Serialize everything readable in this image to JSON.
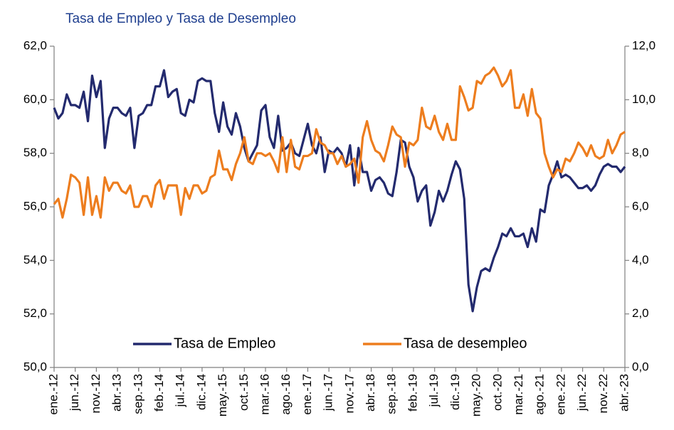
{
  "chart_data": {
    "type": "line",
    "title": "Tasa de Empleo y Tasa de Desempleo",
    "categories": [
      "ene.-12",
      null,
      null,
      null,
      null,
      "jun.-12",
      null,
      null,
      null,
      null,
      "nov.-12",
      null,
      null,
      null,
      null,
      "abr.-13",
      null,
      null,
      null,
      null,
      "sep.-13",
      null,
      null,
      null,
      null,
      "feb.-14",
      null,
      null,
      null,
      null,
      "jul.-14",
      null,
      null,
      null,
      null,
      "dic.-14",
      null,
      null,
      null,
      null,
      "may.-15",
      null,
      null,
      null,
      null,
      "oct.-15",
      null,
      null,
      null,
      null,
      "mar.-16",
      null,
      null,
      null,
      null,
      "ago.-16",
      null,
      null,
      null,
      null,
      "ene.-17",
      null,
      null,
      null,
      null,
      "jun.-17",
      null,
      null,
      null,
      null,
      "nov.-17",
      null,
      null,
      null,
      null,
      "abr.-18",
      null,
      null,
      null,
      null,
      "sep.-18",
      null,
      null,
      null,
      null,
      "feb.-19",
      null,
      null,
      null,
      null,
      "jul.-19",
      null,
      null,
      null,
      null,
      "dic.-19",
      null,
      null,
      null,
      null,
      "may.-20",
      null,
      null,
      null,
      null,
      "oct.-20",
      null,
      null,
      null,
      null,
      "mar.-21",
      null,
      null,
      null,
      null,
      "ago.-21",
      null,
      null,
      null,
      null,
      "ene.-22",
      null,
      null,
      null,
      null,
      "jun.-22",
      null,
      null,
      null,
      null,
      "nov.-22",
      null,
      null,
      null,
      null,
      "abr.-23"
    ],
    "series": [
      {
        "name": "Tasa de Empleo",
        "color": "#232a6e",
        "axis": "y",
        "values": [
          59.7,
          59.3,
          59.5,
          60.2,
          59.8,
          59.8,
          59.7,
          60.3,
          59.2,
          60.9,
          60.1,
          60.7,
          58.2,
          59.3,
          59.7,
          59.7,
          59.5,
          59.4,
          59.7,
          58.2,
          59.4,
          59.5,
          59.8,
          59.8,
          60.5,
          60.5,
          61.1,
          60.1,
          60.3,
          60.4,
          59.5,
          59.4,
          60.0,
          59.9,
          60.7,
          60.8,
          60.7,
          60.7,
          59.5,
          58.8,
          59.9,
          59.0,
          58.7,
          59.5,
          59.0,
          58.2,
          57.7,
          58.0,
          58.3,
          59.6,
          59.8,
          58.6,
          58.2,
          59.4,
          58.1,
          58.2,
          58.4,
          58.0,
          57.9,
          58.5,
          59.1,
          58.3,
          58.0,
          58.6,
          57.3,
          58.1,
          58.0,
          58.2,
          58.0,
          57.5,
          58.3,
          56.8,
          58.2,
          57.3,
          57.3,
          56.6,
          57.0,
          57.1,
          56.9,
          56.5,
          56.4,
          57.3,
          58.5,
          58.4,
          57.5,
          57.1,
          56.2,
          56.6,
          56.8,
          55.3,
          55.8,
          56.6,
          56.2,
          56.6,
          57.2,
          57.7,
          57.4,
          56.3,
          53.1,
          52.1,
          53.0,
          53.6,
          53.7,
          53.6,
          54.1,
          54.5,
          55.0,
          54.9,
          55.2,
          54.9,
          54.9,
          55.0,
          54.5,
          55.2,
          54.7,
          55.9,
          55.8,
          56.8,
          57.2,
          57.7,
          57.1,
          57.2,
          57.1,
          56.9,
          56.7,
          56.7,
          56.8,
          56.6,
          56.8,
          57.2,
          57.5,
          57.6,
          57.5,
          57.5,
          57.3,
          57.5
        ]
      },
      {
        "name": "Tasa de desempleo",
        "color": "#ed7d1e",
        "axis": "y2",
        "values": [
          6.1,
          6.3,
          5.6,
          6.3,
          7.2,
          7.1,
          6.9,
          5.7,
          7.1,
          5.7,
          6.4,
          5.6,
          7.1,
          6.6,
          6.9,
          6.9,
          6.6,
          6.5,
          6.8,
          6.0,
          6.0,
          6.4,
          6.4,
          6.0,
          6.8,
          7.0,
          6.3,
          6.8,
          6.8,
          6.8,
          5.7,
          6.7,
          6.3,
          6.8,
          6.8,
          6.5,
          6.6,
          7.1,
          7.2,
          8.1,
          7.4,
          7.4,
          7.0,
          7.6,
          8.0,
          8.6,
          7.7,
          7.6,
          8.0,
          8.0,
          7.9,
          8.0,
          7.7,
          7.3,
          8.6,
          7.3,
          8.5,
          7.5,
          7.4,
          7.9,
          7.9,
          8.0,
          8.9,
          8.4,
          8.3,
          8.0,
          8.0,
          7.6,
          7.9,
          7.5,
          7.6,
          7.8,
          6.9,
          8.6,
          9.2,
          8.5,
          8.1,
          8.0,
          7.7,
          8.3,
          9.0,
          8.7,
          8.6,
          7.5,
          8.4,
          8.3,
          8.5,
          9.7,
          9.0,
          8.9,
          9.4,
          8.8,
          8.5,
          9.1,
          8.5,
          8.5,
          10.5,
          10.1,
          9.6,
          9.7,
          10.7,
          10.6,
          10.9,
          11.0,
          11.2,
          10.9,
          10.5,
          10.7,
          11.1,
          9.7,
          9.7,
          10.2,
          9.4,
          10.4,
          9.5,
          9.3,
          8.0,
          7.5,
          7.1,
          7.4,
          7.3,
          7.8,
          7.7,
          8.0,
          8.4,
          8.2,
          7.9,
          8.3,
          7.9,
          7.8,
          7.9,
          8.5,
          8.0,
          8.3,
          8.7,
          8.8
        ]
      }
    ],
    "ylim": [
      50,
      62
    ],
    "yticks": [
      {
        "value": 50,
        "label": "50,0"
      },
      {
        "value": 52,
        "label": "52,0"
      },
      {
        "value": 54,
        "label": "54,0"
      },
      {
        "value": 56,
        "label": "56,0"
      },
      {
        "value": 58,
        "label": "58,0"
      },
      {
        "value": 60,
        "label": "60,0"
      },
      {
        "value": 62,
        "label": "62,0"
      }
    ],
    "y2lim": [
      0,
      12
    ],
    "y2ticks": [
      {
        "value": 0,
        "label": "0,0"
      },
      {
        "value": 2,
        "label": "2,0"
      },
      {
        "value": 4,
        "label": "4,0"
      },
      {
        "value": 6,
        "label": "6,0"
      },
      {
        "value": 8,
        "label": "8,0"
      },
      {
        "value": 10,
        "label": "10,0"
      },
      {
        "value": 12,
        "label": "12,0"
      }
    ],
    "grid": false,
    "legend": "bottom"
  }
}
